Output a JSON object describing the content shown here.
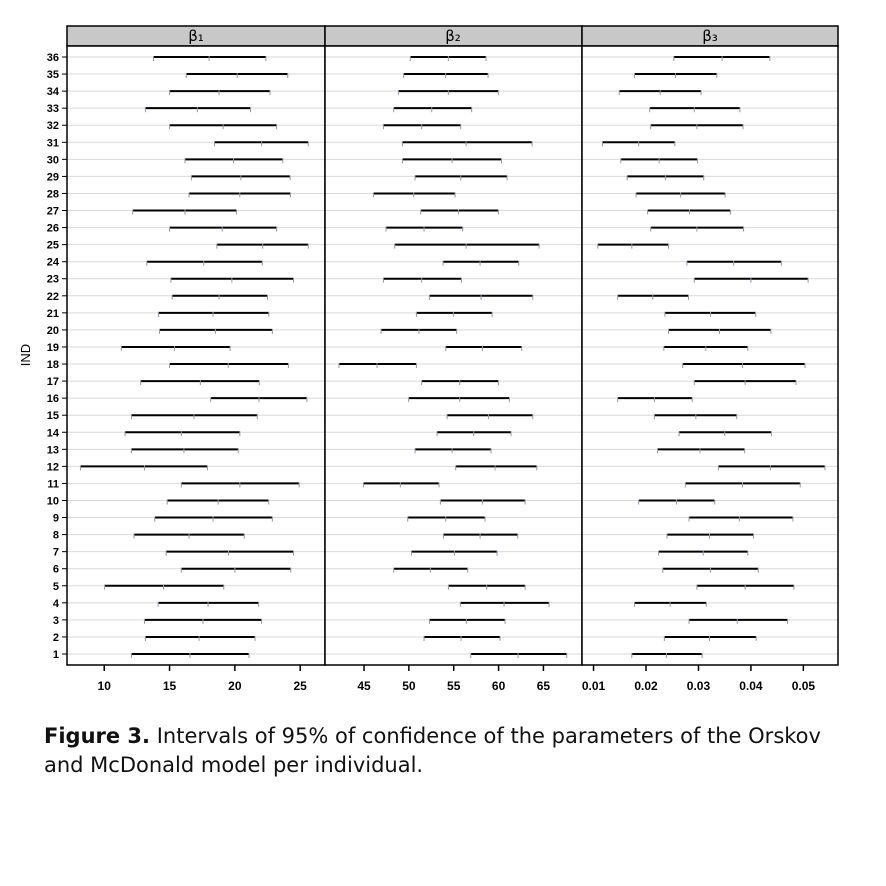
{
  "chart_data": {
    "type": "interval",
    "ylabel": "IND",
    "yticks": [
      1,
      2,
      3,
      4,
      5,
      6,
      7,
      8,
      9,
      10,
      11,
      12,
      13,
      14,
      15,
      16,
      17,
      18,
      19,
      20,
      21,
      22,
      23,
      24,
      25,
      26,
      27,
      28,
      29,
      30,
      31,
      32,
      33,
      34,
      35,
      36
    ],
    "grid": true,
    "panels": [
      {
        "label": "β₁",
        "xlim": [
          7.15,
          26.9
        ],
        "xticks": [
          10,
          15,
          20,
          25
        ],
        "xtick_labels": [
          "10",
          "15",
          "20",
          "25"
        ],
        "lower": [
          12.08,
          13.15,
          13.08,
          14.13,
          10.03,
          15.9,
          14.74,
          12.28,
          13.87,
          14.82,
          15.9,
          8.18,
          12.08,
          11.59,
          12.08,
          18.15,
          12.79,
          15.0,
          11.31,
          14.23,
          14.15,
          15.2,
          15.1,
          13.26,
          18.62,
          15.0,
          12.18,
          16.49,
          16.67,
          16.18,
          18.44,
          15.0,
          13.15,
          15.0,
          16.28,
          13.77
        ],
        "estimate": [
          16.56,
          17.26,
          17.56,
          17.95,
          14.54,
          20.0,
          19.51,
          16.49,
          18.33,
          18.72,
          20.38,
          13.08,
          16.1,
          15.9,
          16.87,
          21.85,
          17.36,
          19.49,
          15.38,
          18.51,
          18.33,
          18.79,
          19.77,
          17.62,
          22.13,
          19.03,
          16.18,
          20.38,
          20.46,
          19.9,
          22.05,
          19.1,
          17.13,
          18.79,
          20.18,
          18.03
        ],
        "upper": [
          21.08,
          21.54,
          22.05,
          21.82,
          19.15,
          24.28,
          24.49,
          20.72,
          22.87,
          22.59,
          24.92,
          17.9,
          20.26,
          20.38,
          21.72,
          25.51,
          21.87,
          24.1,
          19.64,
          22.87,
          22.6,
          22.5,
          24.49,
          22.1,
          25.62,
          23.2,
          20.13,
          24.26,
          24.23,
          23.67,
          25.62,
          23.2,
          21.2,
          22.69,
          24.05,
          22.38
        ]
      },
      {
        "label": "β₂",
        "xlim": [
          40.65,
          69.3
        ],
        "xticks": [
          45,
          50,
          55,
          60,
          65
        ],
        "xtick_labels": [
          "45",
          "50",
          "55",
          "60",
          "65"
        ],
        "lower": [
          56.9,
          51.69,
          52.29,
          55.74,
          54.41,
          48.31,
          50.28,
          53.85,
          49.87,
          53.51,
          44.93,
          55.22,
          50.69,
          53.14,
          54.26,
          49.98,
          51.43,
          42.21,
          54.11,
          46.9,
          50.84,
          52.29,
          47.16,
          53.81,
          48.42,
          47.45,
          51.32,
          46.04,
          50.69,
          49.28,
          49.28,
          47.16,
          48.31,
          48.83,
          49.42,
          50.16
        ],
        "estimate": [
          62.17,
          55.82,
          56.41,
          60.61,
          58.68,
          52.4,
          55.07,
          57.94,
          54.11,
          58.2,
          49.05,
          59.61,
          54.82,
          57.23,
          58.87,
          55.67,
          55.67,
          46.45,
          58.2,
          51.13,
          54.96,
          58.05,
          51.43,
          57.94,
          56.38,
          51.69,
          55.52,
          50.54,
          55.78,
          54.82,
          56.38,
          51.43,
          52.55,
          54.4,
          54.1,
          54.4
        ],
        "upper": [
          67.6,
          60.17,
          60.72,
          65.63,
          62.96,
          56.56,
          59.83,
          62.14,
          58.49,
          62.96,
          53.36,
          64.26,
          59.16,
          61.39,
          63.81,
          61.21,
          59.98,
          50.84,
          62.58,
          55.33,
          59.28,
          63.81,
          55.86,
          62.25,
          64.52,
          56.0,
          59.98,
          55.15,
          60.95,
          60.32,
          63.74,
          55.78,
          57.0,
          59.98,
          58.83,
          58.6
        ]
      },
      {
        "label": "β₃",
        "xlim": [
          0.0078,
          0.0566
        ],
        "xticks": [
          0.01,
          0.02,
          0.03,
          0.04,
          0.05
        ],
        "xtick_labels": [
          "0.01",
          "0.02",
          "0.03",
          "0.04",
          "0.05"
        ],
        "lower": [
          0.0173,
          0.0235,
          0.0282,
          0.0178,
          0.0297,
          0.0232,
          0.0224,
          0.024,
          0.0282,
          0.0186,
          0.0275,
          0.0338,
          0.0222,
          0.0263,
          0.0216,
          0.0146,
          0.0292,
          0.027,
          0.0234,
          0.0243,
          0.0236,
          0.0146,
          0.0292,
          0.0278,
          0.0108,
          0.0209,
          0.0203,
          0.0181,
          0.0164,
          0.0152,
          0.0117,
          0.0209,
          0.0207,
          0.0149,
          0.0178,
          0.0253
        ],
        "estimate": [
          0.0239,
          0.0321,
          0.0374,
          0.0246,
          0.0389,
          0.0323,
          0.0309,
          0.0321,
          0.0378,
          0.0258,
          0.0384,
          0.0437,
          0.0303,
          0.035,
          0.0295,
          0.0216,
          0.0389,
          0.0384,
          0.0314,
          0.034,
          0.0323,
          0.0213,
          0.04,
          0.0367,
          0.0173,
          0.0297,
          0.0283,
          0.0266,
          0.0237,
          0.0225,
          0.0186,
          0.0297,
          0.0292,
          0.0227,
          0.0256,
          0.0345
        ],
        "upper": [
          0.0307,
          0.041,
          0.047,
          0.0315,
          0.0482,
          0.0414,
          0.0394,
          0.0405,
          0.048,
          0.0331,
          0.0494,
          0.0541,
          0.0388,
          0.0439,
          0.0373,
          0.0288,
          0.0486,
          0.0503,
          0.0394,
          0.0438,
          0.0409,
          0.0281,
          0.0509,
          0.0458,
          0.0243,
          0.0386,
          0.0361,
          0.0351,
          0.031,
          0.0298,
          0.0255,
          0.0385,
          0.0379,
          0.0305,
          0.0335,
          0.0436
        ]
      }
    ],
    "colors": {
      "interval": "#000000",
      "marker": "#8a9bb0",
      "grid": "#d9d9d9",
      "strip": "#c8c8c8"
    }
  },
  "caption": {
    "label": "Figure 3.",
    "text": " Intervals of 95% of confidence of the parameters of the Orskov and McDonald model per individual."
  }
}
